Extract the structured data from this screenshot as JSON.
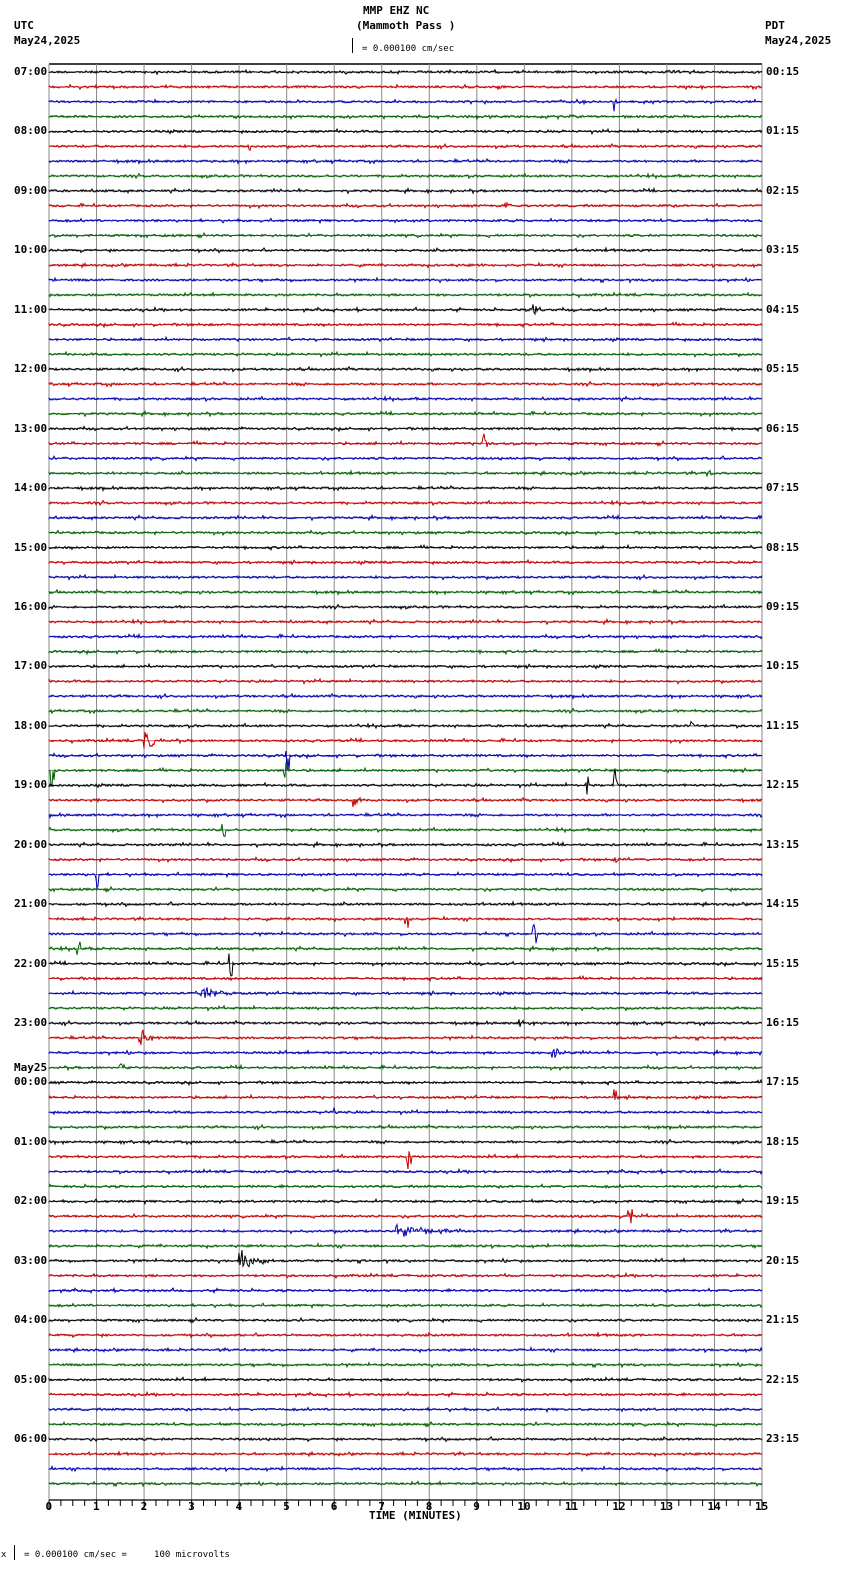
{
  "header": {
    "station": "MMP EHZ NC",
    "location": "(Mammoth Pass )",
    "left_tz": "UTC",
    "left_date": "May24,2025",
    "right_tz": "PDT",
    "right_date": "May24,2025",
    "scale_text": "= 0.000100 cm/sec"
  },
  "footer": {
    "scale_text": "= 0.000100 cm/sec =     100 microvolts",
    "marker": "x"
  },
  "chart_data": {
    "type": "line",
    "title": "MMP EHZ NC (Mammoth Pass )",
    "xlabel": "TIME (MINUTES)",
    "ylabel": "",
    "x_ticks": [
      "0",
      "1",
      "2",
      "3",
      "4",
      "5",
      "6",
      "7",
      "8",
      "9",
      "10",
      "11",
      "12",
      "13",
      "14",
      "15"
    ],
    "xlim": [
      0,
      15
    ],
    "grid": true,
    "traces_per_hour": 4,
    "trace_count": 96,
    "trace_colors": [
      "#000000",
      "#c00000",
      "#0000b0",
      "#006000"
    ],
    "left_labels": [
      {
        "trace": 0,
        "text": "07:00"
      },
      {
        "trace": 4,
        "text": "08:00"
      },
      {
        "trace": 8,
        "text": "09:00"
      },
      {
        "trace": 12,
        "text": "10:00"
      },
      {
        "trace": 16,
        "text": "11:00"
      },
      {
        "trace": 20,
        "text": "12:00"
      },
      {
        "trace": 24,
        "text": "13:00"
      },
      {
        "trace": 28,
        "text": "14:00"
      },
      {
        "trace": 32,
        "text": "15:00"
      },
      {
        "trace": 36,
        "text": "16:00"
      },
      {
        "trace": 40,
        "text": "17:00"
      },
      {
        "trace": 44,
        "text": "18:00"
      },
      {
        "trace": 48,
        "text": "19:00"
      },
      {
        "trace": 52,
        "text": "20:00"
      },
      {
        "trace": 56,
        "text": "21:00"
      },
      {
        "trace": 60,
        "text": "22:00"
      },
      {
        "trace": 64,
        "text": "23:00"
      },
      {
        "trace": 68,
        "text": "00:00",
        "date": "May25"
      },
      {
        "trace": 72,
        "text": "01:00"
      },
      {
        "trace": 76,
        "text": "02:00"
      },
      {
        "trace": 80,
        "text": "03:00"
      },
      {
        "trace": 84,
        "text": "04:00"
      },
      {
        "trace": 88,
        "text": "05:00"
      },
      {
        "trace": 92,
        "text": "06:00"
      }
    ],
    "right_labels": [
      {
        "trace": 0,
        "text": "00:15"
      },
      {
        "trace": 4,
        "text": "01:15"
      },
      {
        "trace": 8,
        "text": "02:15"
      },
      {
        "trace": 12,
        "text": "03:15"
      },
      {
        "trace": 16,
        "text": "04:15"
      },
      {
        "trace": 20,
        "text": "05:15"
      },
      {
        "trace": 24,
        "text": "06:15"
      },
      {
        "trace": 28,
        "text": "07:15"
      },
      {
        "trace": 32,
        "text": "08:15"
      },
      {
        "trace": 36,
        "text": "09:15"
      },
      {
        "trace": 40,
        "text": "10:15"
      },
      {
        "trace": 44,
        "text": "11:15"
      },
      {
        "trace": 48,
        "text": "12:15"
      },
      {
        "trace": 52,
        "text": "13:15"
      },
      {
        "trace": 56,
        "text": "14:15"
      },
      {
        "trace": 60,
        "text": "15:15"
      },
      {
        "trace": 64,
        "text": "16:15"
      },
      {
        "trace": 68,
        "text": "17:15"
      },
      {
        "trace": 72,
        "text": "18:15"
      },
      {
        "trace": 76,
        "text": "19:15"
      },
      {
        "trace": 80,
        "text": "20:15"
      },
      {
        "trace": 84,
        "text": "21:15"
      },
      {
        "trace": 88,
        "text": "22:15"
      },
      {
        "trace": 92,
        "text": "23:15"
      }
    ],
    "events": [
      {
        "trace": 2,
        "minute": 11.9,
        "amp": 10,
        "dur": 0.1
      },
      {
        "trace": 5,
        "minute": 4.2,
        "amp": 5,
        "dur": 0.3
      },
      {
        "trace": 9,
        "minute": 9.6,
        "amp": 3,
        "dur": 0.4
      },
      {
        "trace": 16,
        "minute": 10.2,
        "amp": 8,
        "dur": 0.3
      },
      {
        "trace": 25,
        "minute": 9.15,
        "amp": 14,
        "dur": 0.05
      },
      {
        "trace": 27,
        "minute": 13.85,
        "amp": 6,
        "dur": 0.2
      },
      {
        "trace": 44,
        "minute": 13.5,
        "amp": 12,
        "dur": 0.05
      },
      {
        "trace": 45,
        "minute": 2.0,
        "amp": 18,
        "dur": 0.4
      },
      {
        "trace": 46,
        "minute": 5.0,
        "amp": 14,
        "dur": 0.05
      },
      {
        "trace": 47,
        "minute": 0.05,
        "amp": 18,
        "dur": 0.05
      },
      {
        "trace": 47,
        "minute": 4.95,
        "amp": 14,
        "dur": 0.05
      },
      {
        "trace": 48,
        "minute": 11.3,
        "amp": 14,
        "dur": 0.05
      },
      {
        "trace": 48,
        "minute": 11.9,
        "amp": 18,
        "dur": 0.05
      },
      {
        "trace": 49,
        "minute": 0.9,
        "amp": 5,
        "dur": 0.5
      },
      {
        "trace": 49,
        "minute": 6.4,
        "amp": 8,
        "dur": 0.3
      },
      {
        "trace": 51,
        "minute": 3.65,
        "amp": 14,
        "dur": 0.05
      },
      {
        "trace": 53,
        "minute": 11.9,
        "amp": 5,
        "dur": 0.4
      },
      {
        "trace": 54,
        "minute": 1.0,
        "amp": 14,
        "dur": 0.05
      },
      {
        "trace": 57,
        "minute": 7.5,
        "amp": 10,
        "dur": 0.05
      },
      {
        "trace": 58,
        "minute": 10.2,
        "amp": 10,
        "dur": 0.05
      },
      {
        "trace": 59,
        "minute": 0.6,
        "amp": 10,
        "dur": 0.05
      },
      {
        "trace": 60,
        "minute": 3.8,
        "amp": 12,
        "dur": 0.05
      },
      {
        "trace": 62,
        "minute": 3.2,
        "amp": 9,
        "dur": 0.8
      },
      {
        "trace": 64,
        "minute": 9.9,
        "amp": 5,
        "dur": 0.3
      },
      {
        "trace": 65,
        "minute": 1.9,
        "amp": 14,
        "dur": 0.4
      },
      {
        "trace": 66,
        "minute": 10.6,
        "amp": 8,
        "dur": 0.4
      },
      {
        "trace": 67,
        "minute": 1.5,
        "amp": 6,
        "dur": 0.3
      },
      {
        "trace": 69,
        "minute": 11.9,
        "amp": 10,
        "dur": 0.05
      },
      {
        "trace": 70,
        "minute": 6.0,
        "amp": 6,
        "dur": 0.1
      },
      {
        "trace": 73,
        "minute": 7.55,
        "amp": 16,
        "dur": 0.05
      },
      {
        "trace": 77,
        "minute": 12.2,
        "amp": 8,
        "dur": 0.05
      },
      {
        "trace": 78,
        "minute": 7.3,
        "amp": 7,
        "dur": 1.8
      },
      {
        "trace": 80,
        "minute": 4.0,
        "amp": 12,
        "dur": 0.9
      }
    ]
  }
}
